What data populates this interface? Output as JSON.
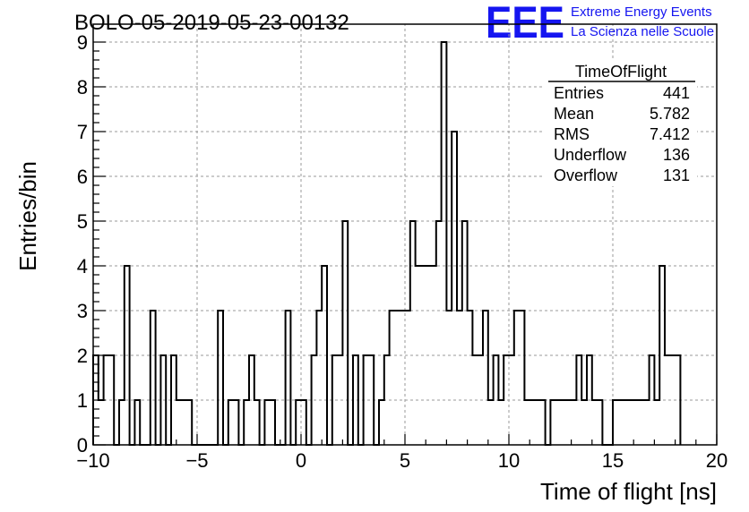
{
  "chart_data": {
    "type": "bar",
    "title": "BOLO-05-2019-05-23-00132",
    "xlabel": "Time of flight [ns]",
    "ylabel": "Entries/bin",
    "xlim": [
      -10,
      20
    ],
    "ylim": [
      0,
      9.4
    ],
    "grid": true,
    "bin_width": 0.25,
    "x_start": -10,
    "xticks": [
      -10,
      -5,
      0,
      5,
      10,
      15,
      20
    ],
    "xtick_labels": [
      "−10",
      "−5",
      "0",
      "5",
      "10",
      "15",
      "20"
    ],
    "yticks": [
      0,
      1,
      2,
      3,
      4,
      5,
      6,
      7,
      8,
      9
    ],
    "ytick_labels": [
      "0",
      "1",
      "2",
      "3",
      "4",
      "5",
      "6",
      "7",
      "8",
      "9"
    ],
    "values": [
      2,
      1,
      2,
      2,
      0,
      1,
      4,
      0,
      1,
      0,
      0,
      3,
      0,
      2,
      0,
      2,
      1,
      1,
      1,
      0,
      0,
      0,
      0,
      0,
      3,
      0,
      1,
      1,
      0,
      1,
      2,
      1,
      0,
      1,
      1,
      0,
      0,
      3,
      0,
      1,
      1,
      0,
      2,
      3,
      4,
      0,
      2,
      2,
      5,
      0,
      2,
      0,
      2,
      2,
      0,
      1,
      2,
      3,
      3,
      3,
      3,
      5,
      4,
      4,
      4,
      4,
      5,
      9,
      3,
      7,
      3,
      5,
      3,
      2,
      2,
      3,
      1,
      2,
      1,
      2,
      2,
      3,
      3,
      1,
      1,
      1,
      1,
      0,
      1,
      1,
      1,
      1,
      1,
      2,
      1,
      2,
      1,
      1,
      0,
      0,
      1,
      1,
      1,
      1,
      1,
      1,
      1,
      2,
      1,
      4,
      2,
      2,
      2
    ]
  },
  "logo": {
    "mark": "EEE",
    "line1": "Extreme Energy Events",
    "line2": "La Scienza nelle Scuole"
  },
  "stats": {
    "name": "TimeOfFlight",
    "rows": [
      {
        "label": "Entries",
        "value": "441"
      },
      {
        "label": "Mean",
        "value": "5.782"
      },
      {
        "label": "RMS",
        "value": "7.412"
      },
      {
        "label": "Underflow",
        "value": "136"
      },
      {
        "label": "Overflow",
        "value": "131"
      }
    ]
  }
}
